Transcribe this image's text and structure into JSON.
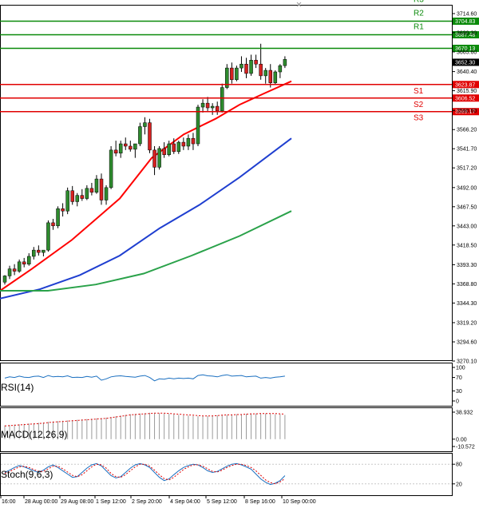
{
  "chart_data": {
    "type": "candlestick",
    "colors": {
      "up": "#2e8b2e",
      "down": "#d62020",
      "ma_fast": "#ff0000",
      "ma_mid": "#1f3fd0",
      "ma_slow": "#2aa24a",
      "resistance": "#0a8a0a",
      "support": "#e00000",
      "indicator": "#1a6fc0",
      "signal": "#e00000",
      "grid": "#c8c8c8"
    },
    "price_axis": {
      "ticks": [
        "3714.60",
        "3690.30",
        "3665.60",
        "3640.40",
        "3615.90",
        "3590.60",
        "3566.20",
        "3541.70",
        "3517.20",
        "3492.00",
        "3467.50",
        "3443.00",
        "3418.50",
        "3393.30",
        "3368.80",
        "3344.30",
        "3319.20",
        "3294.60",
        "3270.10"
      ],
      "ylim": [
        3270.1,
        3714.6
      ]
    },
    "levels": [
      {
        "name": "R3",
        "value": 3704.83,
        "label": "3704.83",
        "kind": "resistance"
      },
      {
        "name": "R2",
        "value": 3687.48,
        "label": "3687.48",
        "kind": "resistance"
      },
      {
        "name": "R1",
        "value": 3670.13,
        "label": "3670.13",
        "kind": "resistance"
      },
      {
        "name": "S1",
        "value": 3623.87,
        "label": "3623.87",
        "kind": "support"
      },
      {
        "name": "S2",
        "value": 3606.52,
        "label": "3606.52",
        "kind": "support"
      },
      {
        "name": "S3",
        "value": 3589.17,
        "label": "3589.17",
        "kind": "support"
      }
    ],
    "current_price": "3652.30",
    "time_axis": [
      "16:00",
      "28 Aug 00:00",
      "29 Aug 08:00",
      "1 Sep 12:00",
      "2 Sep 20:00",
      "4 Sep 04:00",
      "5 Sep 12:00",
      "8 Sep 16:00",
      "10 Sep 00:00"
    ],
    "candles": [
      [
        3371,
        3380,
        3368,
        3379
      ],
      [
        3379,
        3392,
        3375,
        3388
      ],
      [
        3388,
        3394,
        3380,
        3385
      ],
      [
        3385,
        3400,
        3383,
        3397
      ],
      [
        3397,
        3402,
        3390,
        3394
      ],
      [
        3394,
        3408,
        3392,
        3404
      ],
      [
        3404,
        3416,
        3400,
        3412
      ],
      [
        3412,
        3418,
        3405,
        3409
      ],
      [
        3409,
        3412,
        3404,
        3412
      ],
      [
        3412,
        3450,
        3410,
        3447
      ],
      [
        3447,
        3452,
        3438,
        3443
      ],
      [
        3443,
        3468,
        3440,
        3465
      ],
      [
        3465,
        3472,
        3455,
        3462
      ],
      [
        3462,
        3492,
        3458,
        3488
      ],
      [
        3488,
        3494,
        3470,
        3474
      ],
      [
        3474,
        3485,
        3468,
        3482
      ],
      [
        3482,
        3490,
        3475,
        3478
      ],
      [
        3478,
        3495,
        3476,
        3491
      ],
      [
        3491,
        3498,
        3482,
        3486
      ],
      [
        3486,
        3508,
        3484,
        3503
      ],
      [
        3503,
        3510,
        3470,
        3476
      ],
      [
        3476,
        3495,
        3470,
        3492
      ],
      [
        3492,
        3545,
        3490,
        3540
      ],
      [
        3540,
        3552,
        3532,
        3536
      ],
      [
        3536,
        3552,
        3530,
        3548
      ],
      [
        3548,
        3556,
        3540,
        3545
      ],
      [
        3545,
        3552,
        3538,
        3541
      ],
      [
        3541,
        3548,
        3530,
        3548
      ],
      [
        3548,
        3575,
        3545,
        3570
      ],
      [
        3570,
        3582,
        3560,
        3575
      ],
      [
        3575,
        3580,
        3536,
        3540
      ],
      [
        3540,
        3545,
        3508,
        3518
      ],
      [
        3518,
        3545,
        3515,
        3542
      ],
      [
        3542,
        3550,
        3530,
        3534
      ],
      [
        3534,
        3552,
        3532,
        3548
      ],
      [
        3548,
        3555,
        3535,
        3538
      ],
      [
        3538,
        3552,
        3535,
        3550
      ],
      [
        3550,
        3556,
        3540,
        3545
      ],
      [
        3545,
        3560,
        3540,
        3555
      ],
      [
        3555,
        3562,
        3540,
        3548
      ],
      [
        3548,
        3598,
        3545,
        3595
      ],
      [
        3595,
        3605,
        3588,
        3600
      ],
      [
        3600,
        3608,
        3590,
        3594
      ],
      [
        3594,
        3600,
        3585,
        3596
      ],
      [
        3596,
        3602,
        3585,
        3590
      ],
      [
        3590,
        3625,
        3588,
        3620
      ],
      [
        3620,
        3650,
        3618,
        3645
      ],
      [
        3645,
        3652,
        3625,
        3630
      ],
      [
        3630,
        3648,
        3628,
        3645
      ],
      [
        3645,
        3660,
        3640,
        3650
      ],
      [
        3650,
        3658,
        3632,
        3638
      ],
      [
        3638,
        3662,
        3635,
        3655
      ],
      [
        3655,
        3662,
        3645,
        3650
      ],
      [
        3650,
        3676,
        3630,
        3635
      ],
      [
        3635,
        3645,
        3625,
        3642
      ],
      [
        3642,
        3650,
        3620,
        3626
      ],
      [
        3626,
        3642,
        3624,
        3640
      ],
      [
        3640,
        3650,
        3632,
        3648
      ],
      [
        3648,
        3660,
        3645,
        3656
      ]
    ],
    "ma_fast": [
      [
        0,
        3360
      ],
      [
        40,
        3388
      ],
      [
        90,
        3425
      ],
      [
        150,
        3478
      ],
      [
        190,
        3530
      ],
      [
        230,
        3560
      ],
      [
        270,
        3580
      ],
      [
        300,
        3598
      ],
      [
        330,
        3612
      ],
      [
        365,
        3628
      ]
    ],
    "ma_mid": [
      [
        0,
        3350
      ],
      [
        50,
        3362
      ],
      [
        100,
        3380
      ],
      [
        150,
        3405
      ],
      [
        200,
        3440
      ],
      [
        250,
        3470
      ],
      [
        300,
        3505
      ],
      [
        365,
        3555
      ]
    ],
    "ma_slow": [
      [
        0,
        3360
      ],
      [
        60,
        3360
      ],
      [
        120,
        3368
      ],
      [
        180,
        3382
      ],
      [
        240,
        3405
      ],
      [
        300,
        3430
      ],
      [
        365,
        3462
      ]
    ],
    "indicators": [
      {
        "name": "RSI(14)",
        "ticks": [
          "100",
          "70",
          "30",
          "0"
        ],
        "range": [
          0,
          100
        ],
        "values": [
          68,
          72,
          70,
          74,
          71,
          70,
          73,
          74,
          70,
          76,
          72,
          73,
          72,
          75,
          70,
          71,
          70,
          73,
          71,
          74,
          62,
          66,
          72,
          74,
          75,
          73,
          72,
          71,
          74,
          76,
          70,
          60,
          66,
          65,
          68,
          66,
          68,
          67,
          68,
          66,
          76,
          78,
          75,
          74,
          72,
          76,
          78,
          74,
          75,
          76,
          72,
          73,
          74,
          68,
          70,
          68,
          71,
          72,
          74
        ]
      },
      {
        "name": "MACD(12,26,9)",
        "ticks": [
          "38.932",
          "0.00",
          "-10.572"
        ],
        "range": [
          -10.572,
          38.932
        ],
        "values": [
          20,
          20.5,
          21,
          21.5,
          22,
          22.5,
          23,
          23.5,
          24,
          25,
          25.5,
          26,
          26.5,
          27,
          27.5,
          28,
          28.5,
          29,
          29.5,
          30,
          30.5,
          31,
          32,
          33,
          34,
          35,
          36,
          36.5,
          37,
          37.5,
          38,
          38,
          37.5,
          37,
          36.5,
          36,
          35,
          34.5,
          34,
          33.5,
          33,
          33,
          33.5,
          34,
          34.5,
          35,
          35,
          35.5,
          36,
          36,
          36.5,
          37,
          37,
          37,
          37,
          36.5,
          36,
          36,
          35
        ],
        "signal": [
          19,
          19.5,
          20,
          20.5,
          21,
          21.5,
          22,
          22.5,
          23,
          24,
          24.5,
          25,
          25.5,
          26,
          26.5,
          27,
          27.5,
          28,
          28.5,
          29,
          29.5,
          30,
          31,
          32,
          33,
          34,
          35,
          35.5,
          36,
          36.5,
          37,
          37.5,
          37.5,
          37.5,
          37,
          36.5,
          36,
          35.5,
          35,
          34.5,
          34,
          33.5,
          33.5,
          33.5,
          34,
          34.5,
          35,
          35,
          35.5,
          35.5,
          36,
          36.5,
          36.5,
          37,
          37,
          37,
          37,
          36.5,
          36
        ]
      },
      {
        "name": "Stoch(9,6,3)",
        "ticks": [
          "80",
          "20"
        ],
        "range": [
          0,
          100
        ],
        "values": [
          55,
          62,
          70,
          76,
          72,
          66,
          60,
          55,
          62,
          72,
          78,
          70,
          60,
          50,
          40,
          42,
          55,
          68,
          78,
          82,
          75,
          60,
          45,
          38,
          42,
          55,
          68,
          78,
          82,
          78,
          70,
          55,
          40,
          30,
          35,
          48,
          60,
          70,
          76,
          80,
          78,
          70,
          60,
          55,
          58,
          66,
          74,
          80,
          82,
          78,
          72,
          65,
          50,
          35,
          25,
          18,
          22,
          30,
          45
        ],
        "signal": [
          52,
          58,
          65,
          72,
          74,
          70,
          64,
          58,
          58,
          66,
          74,
          74,
          66,
          56,
          46,
          42,
          48,
          60,
          72,
          80,
          78,
          68,
          52,
          42,
          40,
          48,
          60,
          72,
          80,
          80,
          74,
          62,
          48,
          36,
          32,
          40,
          52,
          64,
          72,
          78,
          78,
          74,
          66,
          58,
          56,
          62,
          70,
          76,
          80,
          80,
          76,
          70,
          60,
          46,
          32,
          24,
          20,
          26,
          36
        ]
      }
    ]
  }
}
